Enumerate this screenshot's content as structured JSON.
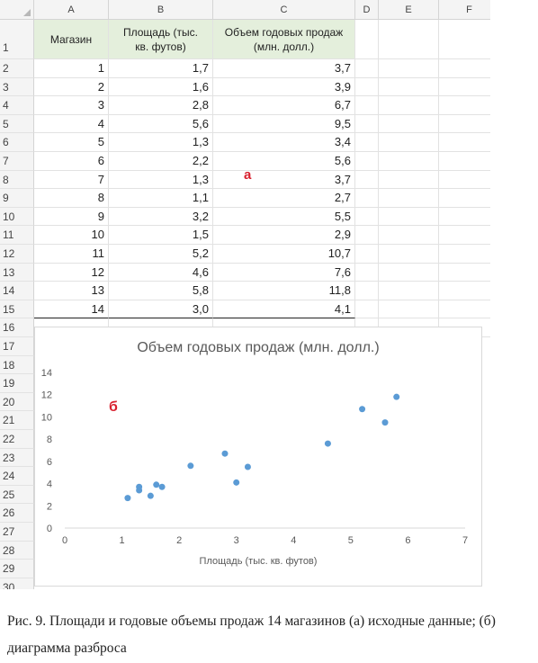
{
  "sheet": {
    "columns": [
      "A",
      "B",
      "C",
      "D",
      "E",
      "F"
    ],
    "row_numbers": [
      "1",
      "2",
      "3",
      "4",
      "5",
      "6",
      "7",
      "8",
      "9",
      "10",
      "11",
      "12",
      "13",
      "14",
      "15",
      "16",
      "17",
      "18",
      "19",
      "20",
      "21",
      "22",
      "23",
      "24",
      "25",
      "26",
      "27",
      "28",
      "29",
      "30"
    ],
    "headers": {
      "a": "Магазин",
      "b": "Площадь (тыс. кв. футов)",
      "c": "Объем годовых продаж (млн. долл.)"
    },
    "rows": [
      [
        "1",
        "1,7",
        "3,7"
      ],
      [
        "2",
        "1,6",
        "3,9"
      ],
      [
        "3",
        "2,8",
        "6,7"
      ],
      [
        "4",
        "5,6",
        "9,5"
      ],
      [
        "5",
        "1,3",
        "3,4"
      ],
      [
        "6",
        "2,2",
        "5,6"
      ],
      [
        "7",
        "1,3",
        "3,7"
      ],
      [
        "8",
        "1,1",
        "2,7"
      ],
      [
        "9",
        "3,2",
        "5,5"
      ],
      [
        "10",
        "1,5",
        "2,9"
      ],
      [
        "11",
        "5,2",
        "10,7"
      ],
      [
        "12",
        "4,6",
        "7,6"
      ],
      [
        "13",
        "5,8",
        "11,8"
      ],
      [
        "14",
        "3,0",
        "4,1"
      ]
    ],
    "overlay_a": "а",
    "header_fill": "#e4efdc"
  },
  "chart_data": {
    "type": "scatter",
    "title": "Объем годовых продаж (млн. долл.)",
    "xlabel": "Площадь (тыс. кв. футов)",
    "ylabel": "",
    "xlim": [
      0,
      7
    ],
    "ylim": [
      0,
      14
    ],
    "x_ticks": [
      "0",
      "1",
      "2",
      "3",
      "4",
      "5",
      "6",
      "7"
    ],
    "y_ticks": [
      "0",
      "2",
      "4",
      "6",
      "8",
      "10",
      "12",
      "14"
    ],
    "grid": false,
    "point_color": "#5b9bd5",
    "series": [
      {
        "x": [
          1.7,
          1.6,
          2.8,
          5.6,
          1.3,
          2.2,
          1.3,
          1.1,
          3.2,
          1.5,
          5.2,
          4.6,
          5.8,
          3.0
        ],
        "y": [
          3.7,
          3.9,
          6.7,
          9.5,
          3.4,
          5.6,
          3.7,
          2.7,
          5.5,
          2.9,
          10.7,
          7.6,
          11.8,
          4.1
        ]
      }
    ],
    "overlay_label": "б"
  },
  "caption": "Рис. 9. Площади и годовые объемы продаж 14 магазинов (а) исходные данные; (б) диаграмма разброса"
}
